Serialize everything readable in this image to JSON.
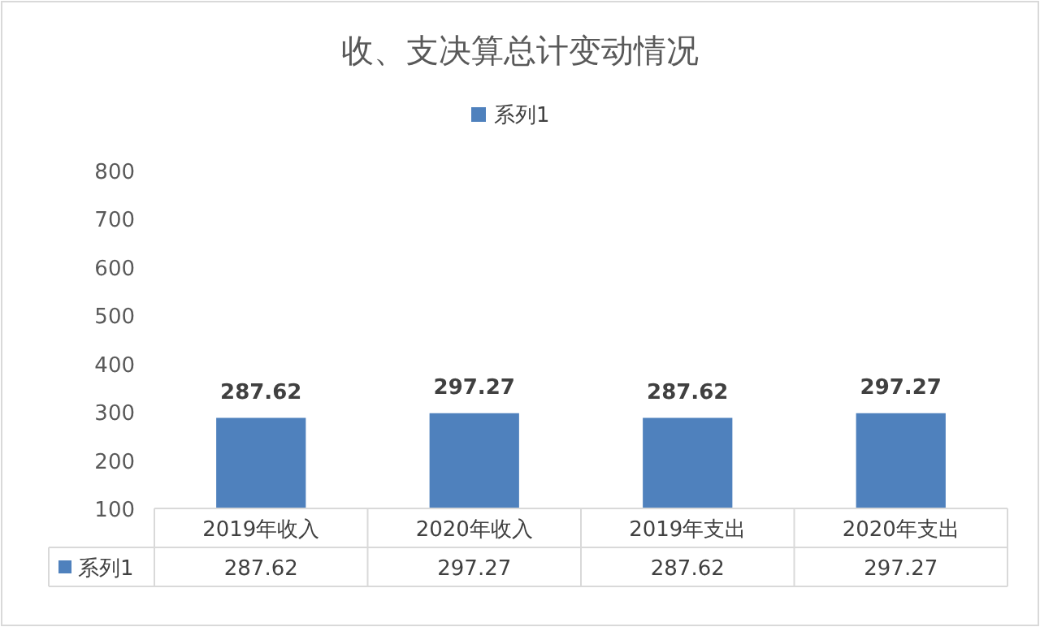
{
  "chart_data": [
    {
      "type": "bar",
      "title": "收、支决算总计变动情况",
      "categories": [
        "2019年收入",
        "2020年收入",
        "2019年支出",
        "2020年支出"
      ],
      "series": [
        {
          "name": "系列1",
          "color": "#4f81bd",
          "values": [
            287.62,
            297.27,
            287.62,
            297.27
          ],
          "value_labels": [
            "287.62",
            "297.27",
            "287.62",
            "297.27"
          ]
        }
      ],
      "ylim": [
        100,
        800
      ],
      "yticks": [
        100,
        200,
        300,
        400,
        500,
        600,
        700,
        800
      ],
      "legend": "top",
      "grid": false
    },
    {
      "type": "other",
      "series": [
        {
          "name": "系列1",
          "color": "#4f81bd",
          "values": [
            287.62,
            297.27,
            287.62,
            297.27
          ]
        }
      ],
      "data_labels": true,
      "legend": "left"
    }
  ]
}
